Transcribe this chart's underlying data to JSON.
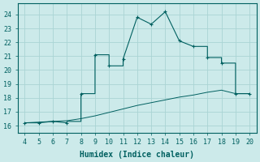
{
  "xlabel": "Humidex (Indice chaleur)",
  "ylabel": "",
  "bg_color": "#cceaea",
  "grid_color": "#aad4d4",
  "line_color": "#006060",
  "marker_color": "#006060",
  "xlim": [
    3.5,
    20.5
  ],
  "ylim": [
    15.5,
    24.8
  ],
  "xticks": [
    4,
    5,
    6,
    7,
    8,
    9,
    10,
    11,
    12,
    13,
    14,
    15,
    16,
    17,
    18,
    19,
    20
  ],
  "yticks": [
    16,
    17,
    18,
    19,
    20,
    21,
    22,
    23,
    24
  ],
  "curve1_x": [
    4,
    5,
    6,
    7,
    7,
    8,
    8,
    9,
    9,
    10,
    10,
    11,
    11,
    12,
    13,
    14,
    15,
    16,
    17,
    17,
    18,
    18,
    19,
    19,
    20
  ],
  "curve1_y": [
    16.2,
    16.2,
    16.3,
    16.2,
    16.3,
    16.3,
    18.3,
    18.3,
    21.1,
    21.1,
    20.3,
    20.3,
    20.8,
    23.8,
    23.3,
    24.2,
    22.1,
    21.7,
    21.7,
    20.9,
    20.9,
    20.5,
    20.5,
    18.3,
    18.3
  ],
  "curve1_markers_x": [
    4,
    5,
    6,
    7,
    8,
    9,
    10,
    11,
    12,
    13,
    14,
    15,
    16,
    17,
    18,
    19,
    20
  ],
  "curve1_markers_y": [
    16.2,
    16.2,
    16.3,
    16.2,
    18.3,
    21.1,
    20.3,
    20.8,
    23.8,
    23.3,
    24.2,
    22.1,
    21.7,
    20.9,
    20.5,
    18.3,
    18.3
  ],
  "curve2_x": [
    4,
    5,
    6,
    7,
    8,
    9,
    10,
    11,
    12,
    13,
    14,
    15,
    16,
    17,
    18,
    19,
    20
  ],
  "curve2_y": [
    16.2,
    16.25,
    16.3,
    16.35,
    16.5,
    16.7,
    16.95,
    17.2,
    17.45,
    17.65,
    17.85,
    18.05,
    18.2,
    18.4,
    18.55,
    18.3,
    18.3
  ],
  "font_size_label": 7.0,
  "font_size_tick": 6.0
}
